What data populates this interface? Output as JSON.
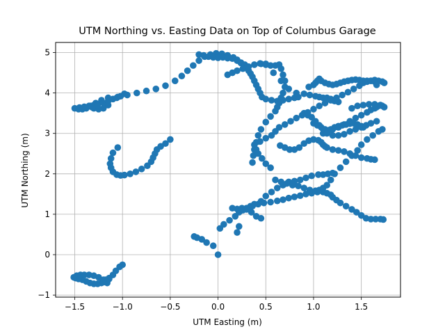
{
  "chart_data": {
    "type": "scatter",
    "title": "UTM Northing vs. Easting Data on Top of Columbus Garage",
    "xlabel": "UTM Easting (m)",
    "ylabel": "UTM Northing (m)",
    "xlim": [
      -1.7,
      1.91
    ],
    "ylim": [
      -1.05,
      5.25
    ],
    "xticks": [
      -1.5,
      -1.0,
      -0.5,
      0.0,
      0.5,
      1.0,
      1.5
    ],
    "xtick_labels": [
      "−1.5",
      "−1.0",
      "−0.5",
      "0.0",
      "0.5",
      "1.0",
      "1.5"
    ],
    "yticks": [
      -1,
      0,
      1,
      2,
      3,
      4,
      5
    ],
    "ytick_labels": [
      "−1",
      "0",
      "1",
      "2",
      "3",
      "4",
      "5"
    ],
    "grid": true,
    "marker_color": "#1f77b4",
    "series": [
      {
        "x": [
          0.0,
          -0.05,
          -0.12,
          -0.17,
          -0.22,
          -0.25,
          0.02,
          0.06,
          0.12,
          0.18,
          0.22,
          0.26,
          0.3,
          0.36,
          0.42,
          0.48,
          0.55,
          0.62,
          0.68,
          0.74,
          0.8,
          0.86,
          0.92,
          0.98,
          1.04,
          1.1,
          1.14,
          1.18,
          1.2,
          1.24,
          1.28,
          1.34,
          1.4,
          1.45,
          1.5,
          1.55,
          1.6,
          1.65,
          1.7,
          1.73,
          0.15,
          0.2,
          0.25,
          0.3,
          0.34,
          0.38,
          0.45,
          0.5,
          0.56,
          0.62,
          0.68,
          0.74,
          0.8,
          0.86,
          0.92,
          0.98,
          1.05,
          1.1,
          1.15,
          1.2,
          0.45,
          0.4,
          0.35,
          0.3,
          0.25,
          0.22,
          0.2,
          -1.0,
          -1.03,
          -1.07,
          -1.1,
          -1.14,
          -1.18,
          -1.22,
          -1.26,
          -1.3,
          -1.34,
          -1.38,
          -1.42,
          -1.46,
          -1.49,
          -1.51,
          -1.48,
          -1.44,
          -1.4,
          -1.35,
          -1.3,
          -1.25,
          -1.2,
          -1.16,
          -0.5,
          -0.55,
          -0.6,
          -0.64,
          -0.66,
          -0.68,
          -0.7,
          -0.74,
          -0.8,
          -0.86,
          -0.92,
          -0.98,
          -1.02,
          -1.06,
          -1.1,
          -1.12,
          -1.13,
          -1.12,
          -1.1,
          -1.05,
          -1.15,
          -1.2,
          -1.25,
          -1.3,
          -1.33,
          -1.28,
          -1.22,
          -1.15,
          -1.05,
          -0.95,
          -0.85,
          -0.75,
          -0.65,
          -0.55,
          -0.45,
          -0.38,
          -0.32,
          -0.26,
          -0.2,
          -0.14,
          -0.08,
          -0.02,
          0.04,
          0.1,
          0.16,
          0.2,
          0.24,
          -0.2,
          -0.15,
          -0.1,
          -0.05,
          0.0,
          0.05,
          0.1,
          0.15,
          0.2,
          0.24,
          0.28,
          0.3,
          0.32,
          0.34,
          0.36,
          0.38,
          0.4,
          0.42,
          0.44,
          0.46,
          0.5,
          0.56,
          0.62,
          0.68,
          0.74,
          0.8,
          0.84,
          0.45,
          0.5,
          0.55,
          0.6,
          0.64,
          0.66,
          0.68,
          0.7,
          0.7,
          0.68,
          0.66,
          0.65,
          0.64,
          0.62,
          0.6,
          0.55,
          0.5,
          0.45,
          0.42,
          0.4,
          0.38,
          0.37,
          0.36,
          0.1,
          0.15,
          0.2,
          0.26,
          0.32,
          0.38,
          0.44,
          0.5,
          0.58,
          0.66,
          0.74,
          0.82,
          0.9,
          0.96,
          1.02,
          1.06,
          1.1,
          1.14,
          1.18,
          1.22,
          1.26,
          0.6,
          0.66,
          0.72,
          0.78,
          0.84,
          0.9,
          0.96,
          1.02,
          1.06,
          1.1,
          1.14,
          1.18,
          1.22,
          1.28,
          1.34,
          1.4,
          1.46,
          1.5,
          1.56,
          1.62,
          1.68,
          1.72,
          0.65,
          0.7,
          0.75,
          0.8,
          0.85,
          0.9,
          0.95,
          1.0,
          1.05,
          1.08,
          1.1,
          1.12,
          1.14,
          1.2,
          1.26,
          1.32,
          1.38,
          1.44,
          1.5,
          1.56,
          1.6,
          1.64,
          1.0,
          1.04,
          1.08,
          1.12,
          1.16,
          1.2,
          1.26,
          1.32,
          1.38,
          1.44,
          1.5,
          1.56,
          1.6,
          1.64,
          1.66,
          1.68,
          1.7,
          1.72,
          1.74,
          1.7,
          1.64,
          1.58,
          1.52,
          1.46,
          1.4,
          1.1,
          1.14,
          1.18,
          1.22,
          1.26,
          1.3,
          1.34,
          1.38,
          1.42,
          1.46,
          1.5,
          1.52,
          0.9,
          0.94,
          0.98,
          1.02,
          1.06,
          1.1,
          1.14,
          1.2,
          1.26,
          1.32,
          1.38,
          1.44,
          1.5,
          1.55,
          1.6,
          1.66,
          0.55,
          0.5,
          0.46,
          0.42,
          0.4,
          0.38,
          0.44,
          0.5,
          0.56,
          0.6,
          0.64,
          0.7,
          0.76,
          0.82,
          0.88,
          0.94,
          1.0,
          1.06,
          1.12,
          1.18,
          1.24,
          1.3,
          1.36,
          1.42,
          1.48,
          1.52,
          1.56,
          1.6,
          1.64,
          1.68,
          1.72,
          1.74,
          0.95,
          1.0,
          1.02,
          1.04,
          1.06,
          1.08,
          1.12,
          1.16,
          1.2,
          1.24,
          1.28,
          1.32,
          1.36,
          1.4,
          1.44,
          1.48,
          1.52,
          1.56,
          1.6,
          1.64,
          1.66,
          -1.3,
          -1.35,
          -1.4,
          -1.45,
          -1.5,
          -1.46,
          -1.42,
          -1.38,
          -1.32,
          -1.26,
          -1.2,
          -1.15,
          -1.1,
          -1.06,
          -1.02,
          -0.98,
          -1.2,
          -1.18,
          -1.14
        ],
        "y": [
          0.0,
          0.22,
          0.3,
          0.38,
          0.42,
          0.45,
          0.65,
          0.75,
          0.85,
          0.95,
          1.05,
          1.1,
          1.15,
          1.2,
          1.25,
          1.28,
          1.3,
          1.33,
          1.36,
          1.4,
          1.43,
          1.46,
          1.5,
          1.52,
          1.55,
          1.55,
          1.52,
          1.48,
          1.42,
          1.35,
          1.28,
          1.2,
          1.12,
          1.05,
          0.97,
          0.9,
          0.88,
          0.88,
          0.88,
          0.87,
          1.15,
          1.13,
          1.12,
          1.15,
          1.2,
          1.25,
          1.32,
          1.45,
          1.55,
          1.65,
          1.72,
          1.8,
          1.82,
          1.85,
          1.9,
          1.95,
          1.98,
          1.98,
          2.0,
          2.02,
          0.9,
          0.95,
          1.05,
          1.12,
          1.15,
          0.7,
          0.55,
          -0.25,
          -0.3,
          -0.4,
          -0.5,
          -0.58,
          -0.65,
          -0.7,
          -0.72,
          -0.72,
          -0.7,
          -0.66,
          -0.62,
          -0.6,
          -0.58,
          -0.56,
          -0.52,
          -0.5,
          -0.5,
          -0.5,
          -0.52,
          -0.56,
          -0.62,
          -0.7,
          2.85,
          2.75,
          2.68,
          2.6,
          2.5,
          2.4,
          2.3,
          2.2,
          2.12,
          2.05,
          2.0,
          1.97,
          1.96,
          1.98,
          2.05,
          2.15,
          2.25,
          2.38,
          2.52,
          2.65,
          3.7,
          3.62,
          3.6,
          3.62,
          3.68,
          3.75,
          3.82,
          3.88,
          3.9,
          3.95,
          4.0,
          4.05,
          4.1,
          4.18,
          4.3,
          4.42,
          4.55,
          4.68,
          4.8,
          4.9,
          4.95,
          4.98,
          4.97,
          4.93,
          4.88,
          4.82,
          4.74,
          4.95,
          4.93,
          4.9,
          4.88,
          4.87,
          4.88,
          4.86,
          4.85,
          4.8,
          4.75,
          4.7,
          4.62,
          4.55,
          4.48,
          4.4,
          4.3,
          4.2,
          4.1,
          4.0,
          3.9,
          3.85,
          3.82,
          3.8,
          3.82,
          3.85,
          3.88,
          3.9,
          4.72,
          4.7,
          4.68,
          4.68,
          4.7,
          4.6,
          4.45,
          4.3,
          4.15,
          4.0,
          3.88,
          3.8,
          3.75,
          3.65,
          3.55,
          3.42,
          3.28,
          3.1,
          2.95,
          2.78,
          2.6,
          2.45,
          2.28,
          4.45,
          4.5,
          4.55,
          4.6,
          4.65,
          4.7,
          4.73,
          4.72,
          4.5,
          4.3,
          4.1,
          4.0,
          3.98,
          3.95,
          3.92,
          3.9,
          3.88,
          3.88,
          3.85,
          3.8,
          3.78,
          1.85,
          1.8,
          1.76,
          1.72,
          1.7,
          1.65,
          1.6,
          1.58,
          1.6,
          1.65,
          1.72,
          1.85,
          2.0,
          2.15,
          2.3,
          2.45,
          2.58,
          2.72,
          2.85,
          2.95,
          3.05,
          3.1,
          2.7,
          2.65,
          2.6,
          2.6,
          2.65,
          2.75,
          2.82,
          2.85,
          2.83,
          2.78,
          2.72,
          2.68,
          2.65,
          2.6,
          2.58,
          2.55,
          2.5,
          2.45,
          2.4,
          2.38,
          2.36,
          2.35,
          3.25,
          3.2,
          3.15,
          3.1,
          3.08,
          3.1,
          3.15,
          3.22,
          3.3,
          3.38,
          3.45,
          3.52,
          3.58,
          3.62,
          3.65,
          3.68,
          3.7,
          3.68,
          3.65,
          3.7,
          3.72,
          3.72,
          3.7,
          3.68,
          3.62,
          3.0,
          3.05,
          3.1,
          3.15,
          3.18,
          3.2,
          3.22,
          3.24,
          3.25,
          3.22,
          3.18,
          3.15,
          3.5,
          3.45,
          3.4,
          3.3,
          3.2,
          3.1,
          3.0,
          2.95,
          2.95,
          2.98,
          3.05,
          3.1,
          3.15,
          3.2,
          3.25,
          3.3,
          2.15,
          2.25,
          2.38,
          2.5,
          2.6,
          2.72,
          2.8,
          2.88,
          2.95,
          3.05,
          3.15,
          3.22,
          3.3,
          3.38,
          3.45,
          3.52,
          3.6,
          3.68,
          3.75,
          3.82,
          3.88,
          3.95,
          4.02,
          4.1,
          4.18,
          4.25,
          4.28,
          4.3,
          4.32,
          4.3,
          4.28,
          4.25,
          4.15,
          4.2,
          4.25,
          4.3,
          4.35,
          4.3,
          4.25,
          4.22,
          4.2,
          4.22,
          4.25,
          4.28,
          4.3,
          4.32,
          4.33,
          4.32,
          4.3,
          4.3,
          4.3,
          4.28,
          4.2,
          3.7,
          3.68,
          3.66,
          3.64,
          3.62,
          3.6,
          3.6,
          3.62,
          3.65,
          3.7,
          3.75,
          3.8,
          3.85,
          3.88,
          3.92,
          3.98,
          -0.68,
          -0.62,
          -0.6
        ]
      }
    ]
  }
}
